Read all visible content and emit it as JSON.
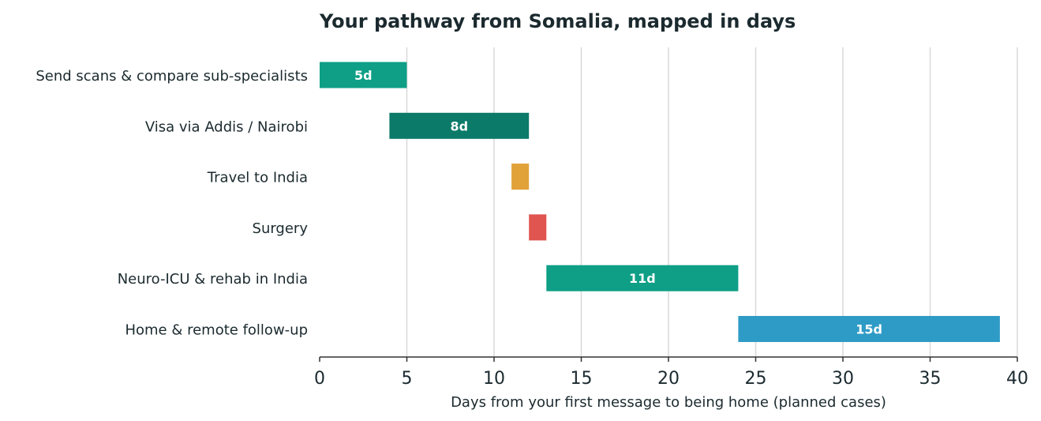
{
  "chart_data": {
    "type": "bar",
    "orientation": "horizontal-gantt",
    "title": "Your pathway from Somalia, mapped in days",
    "xlabel": "Days from your first message to being home (planned cases)",
    "ylabel": "",
    "xlim": [
      0,
      40
    ],
    "xticks": [
      0,
      5,
      10,
      15,
      20,
      25,
      30,
      35,
      40
    ],
    "grid": "vertical",
    "legend": "none",
    "tasks": [
      {
        "name": "Send scans & compare sub-specialists",
        "start": 0,
        "end": 5,
        "label": "5d",
        "color": "#0e9f86"
      },
      {
        "name": "Visa via Addis / Nairobi",
        "start": 4,
        "end": 12,
        "label": "8d",
        "color": "#0b7a69"
      },
      {
        "name": "Travel to India",
        "start": 11,
        "end": 12,
        "label": "",
        "color": "#e1a23a"
      },
      {
        "name": "Surgery",
        "start": 12,
        "end": 13,
        "label": "",
        "color": "#e05550"
      },
      {
        "name": "Neuro-ICU & rehab in India",
        "start": 13,
        "end": 24,
        "label": "11d",
        "color": "#0e9f86"
      },
      {
        "name": "Home & remote follow-up",
        "start": 24,
        "end": 39,
        "label": "15d",
        "color": "#2e9bc6"
      }
    ]
  }
}
